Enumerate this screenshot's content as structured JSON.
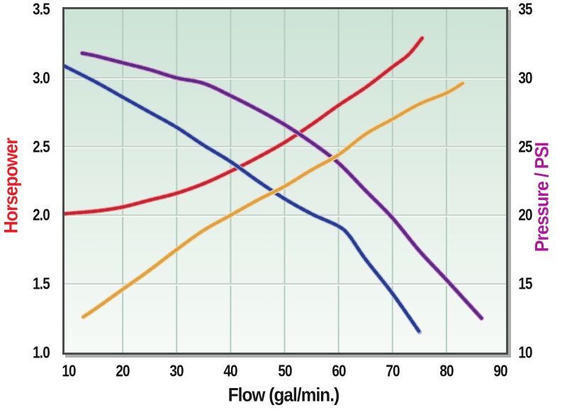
{
  "chart_data": {
    "type": "line",
    "xlabel": "Flow (gal/min.)",
    "left_axis_label": "Horsepower",
    "right_axis_label": "Pressure / PSI",
    "left_axis_label_color": "#ed1c24",
    "right_axis_label_color": "#b2189d",
    "tick_text_color": "#161616",
    "x_axis": {
      "min": 10,
      "max": 90,
      "ticks": [
        [
          10,
          "10"
        ],
        [
          20,
          "20"
        ],
        [
          30,
          "30"
        ],
        [
          40,
          "40"
        ],
        [
          50,
          "50"
        ],
        [
          60,
          "60"
        ],
        [
          70,
          "70"
        ],
        [
          80,
          "80"
        ],
        [
          90,
          "90"
        ]
      ]
    },
    "left_axis": {
      "min": 1.0,
      "max": 3.5,
      "ticks": [
        [
          3.5,
          "3.5"
        ],
        [
          3.0,
          "3.0"
        ],
        [
          2.5,
          "2.5"
        ],
        [
          2.0,
          "2.0"
        ],
        [
          1.5,
          "1.5"
        ],
        [
          1.0,
          "1.0"
        ]
      ]
    },
    "right_axis": {
      "min": 10,
      "max": 35,
      "ticks": [
        [
          35,
          "35"
        ],
        [
          30,
          "30"
        ],
        [
          25,
          "25"
        ],
        [
          20,
          "20"
        ],
        [
          15,
          "15"
        ],
        [
          10,
          "10"
        ]
      ]
    },
    "grid": {
      "x_lines": [
        20,
        30,
        40,
        50,
        60,
        70,
        80
      ],
      "y_lines_left_values": [
        3.0,
        2.5,
        2.0,
        1.5
      ],
      "vertical_color": "#b5cdc0",
      "horizontal_color": "#c3d0c8",
      "horizontal_emboss_color": "#ffffff"
    },
    "plot_background": {
      "top": "#cde3d6",
      "bottom": "#f7faf7"
    },
    "frame_color": "#4c4c4c",
    "frame_shadow_color": "#a9aeab",
    "legend": "none",
    "series": [
      {
        "name": "red",
        "axis": "left",
        "color": "#c42634",
        "fringe": "#f0a3a3",
        "points": [
          [
            9,
            2.01
          ],
          [
            15,
            2.03
          ],
          [
            20,
            2.06
          ],
          [
            25,
            2.11
          ],
          [
            30,
            2.16
          ],
          [
            35,
            2.23
          ],
          [
            40,
            2.32
          ],
          [
            45,
            2.42
          ],
          [
            50,
            2.53
          ],
          [
            55,
            2.66
          ],
          [
            60,
            2.8
          ],
          [
            65,
            2.93
          ],
          [
            70,
            3.08
          ],
          [
            73,
            3.17
          ],
          [
            75.5,
            3.29
          ]
        ]
      },
      {
        "name": "blue",
        "axis": "left",
        "color": "#2a3a8e",
        "fringe": "#a3b2da",
        "points": [
          [
            9,
            3.09
          ],
          [
            15,
            2.97
          ],
          [
            20,
            2.86
          ],
          [
            25,
            2.75
          ],
          [
            30,
            2.64
          ],
          [
            35,
            2.51
          ],
          [
            40,
            2.39
          ],
          [
            45,
            2.25
          ],
          [
            50,
            2.12
          ],
          [
            55,
            2.01
          ],
          [
            60,
            1.92
          ],
          [
            62,
            1.85
          ],
          [
            65,
            1.68
          ],
          [
            70,
            1.43
          ],
          [
            75,
            1.15
          ]
        ]
      },
      {
        "name": "purple",
        "axis": "right",
        "color": "#5e2b84",
        "fringe": "#cf8fd0",
        "points": [
          [
            12.5,
            31.8
          ],
          [
            15,
            31.6
          ],
          [
            20,
            31.1
          ],
          [
            25,
            30.6
          ],
          [
            30,
            30.0
          ],
          [
            35,
            29.6
          ],
          [
            40,
            28.7
          ],
          [
            45,
            27.7
          ],
          [
            50,
            26.6
          ],
          [
            55,
            25.3
          ],
          [
            60,
            23.8
          ],
          [
            65,
            21.8
          ],
          [
            70,
            19.8
          ],
          [
            75,
            17.4
          ],
          [
            80,
            15.3
          ],
          [
            86.5,
            12.5
          ]
        ]
      },
      {
        "name": "orange",
        "axis": "right",
        "color": "#dfa142",
        "fringe": "#f3d9a8",
        "points": [
          [
            12.7,
            12.6
          ],
          [
            15,
            13.2
          ],
          [
            20,
            14.6
          ],
          [
            25,
            16.0
          ],
          [
            30,
            17.5
          ],
          [
            35,
            18.9
          ],
          [
            40,
            20.0
          ],
          [
            45,
            21.1
          ],
          [
            50,
            22.1
          ],
          [
            55,
            23.3
          ],
          [
            60,
            24.4
          ],
          [
            65,
            25.9
          ],
          [
            70,
            27.0
          ],
          [
            75,
            28.1
          ],
          [
            80,
            28.9
          ],
          [
            83,
            29.6
          ]
        ]
      }
    ]
  }
}
